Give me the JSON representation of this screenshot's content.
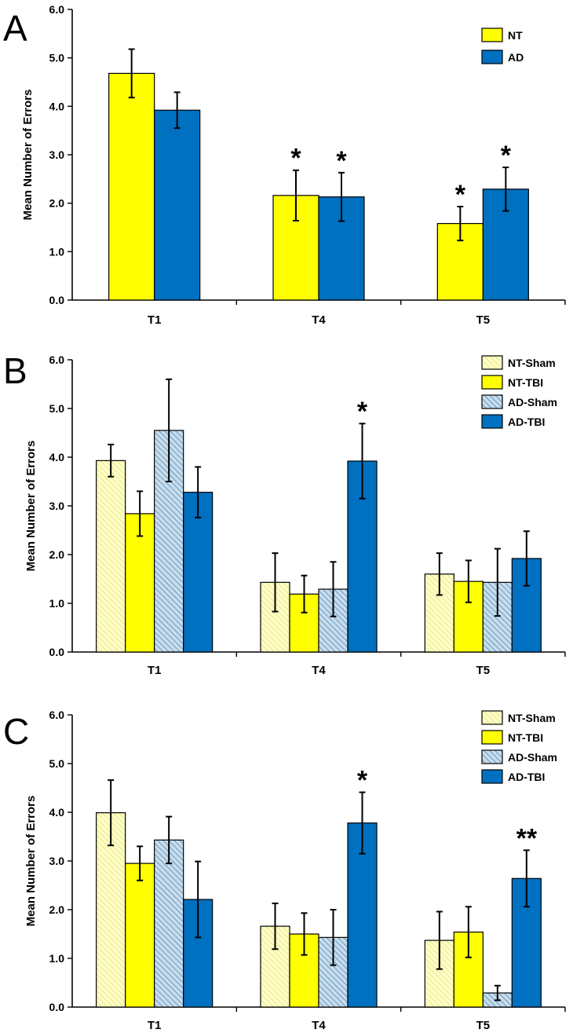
{
  "colors": {
    "nt": "#ffff00",
    "nt_sham": "#ffffc4",
    "ad": "#0070c0",
    "ad_sham": "#b8cfe0",
    "axis": "#000000"
  },
  "chart_data": [
    {
      "type": "bar",
      "panel": "A",
      "ylabel": "Mean Number of Errors",
      "ylim": [
        0,
        6
      ],
      "yticks": [
        "0.0",
        "1.0",
        "2.0",
        "3.0",
        "4.0",
        "5.0",
        "6.0"
      ],
      "categories": [
        "T1",
        "T4",
        "T5"
      ],
      "legend": "top-right",
      "series": [
        {
          "name": "NT",
          "color": "#ffff00",
          "pattern": "solid",
          "values": [
            4.68,
            2.16,
            1.58
          ],
          "errors": [
            0.5,
            0.52,
            0.35
          ],
          "stars": [
            "",
            "*",
            "*"
          ]
        },
        {
          "name": "AD",
          "color": "#0070c0",
          "pattern": "solid",
          "values": [
            3.92,
            2.13,
            2.29
          ],
          "errors": [
            0.37,
            0.5,
            0.45
          ],
          "stars": [
            "",
            "*",
            "*"
          ]
        }
      ]
    },
    {
      "type": "bar",
      "panel": "B",
      "ylabel": "Mean Number of Errors",
      "ylim": [
        0,
        6
      ],
      "yticks": [
        "0.0",
        "1.0",
        "2.0",
        "3.0",
        "4.0",
        "5.0",
        "6.0"
      ],
      "categories": [
        "T1",
        "T4",
        "T5"
      ],
      "legend": "top-right",
      "series": [
        {
          "name": "NT-Sham",
          "color": "#ffffc4",
          "pattern": "hatch",
          "values": [
            3.93,
            1.43,
            1.6
          ],
          "errors": [
            0.33,
            0.6,
            0.43
          ],
          "stars": [
            "",
            "",
            ""
          ]
        },
        {
          "name": "NT-TBI",
          "color": "#ffff00",
          "pattern": "solid",
          "values": [
            2.84,
            1.19,
            1.45
          ],
          "errors": [
            0.46,
            0.38,
            0.43
          ],
          "stars": [
            "",
            "",
            ""
          ]
        },
        {
          "name": "AD-Sham",
          "color": "#b8cfe0",
          "pattern": "hatch",
          "values": [
            4.55,
            1.29,
            1.43
          ],
          "errors": [
            1.05,
            0.56,
            0.69
          ],
          "stars": [
            "",
            "",
            ""
          ]
        },
        {
          "name": "AD-TBI",
          "color": "#0070c0",
          "pattern": "solid",
          "values": [
            3.28,
            3.92,
            1.92
          ],
          "errors": [
            0.52,
            0.77,
            0.56
          ],
          "stars": [
            "",
            "*",
            ""
          ]
        }
      ]
    },
    {
      "type": "bar",
      "panel": "C",
      "ylabel": "Mean Number of Errors",
      "ylim": [
        0,
        6
      ],
      "yticks": [
        "0.0",
        "1.0",
        "2.0",
        "3.0",
        "4.0",
        "5.0",
        "6.0"
      ],
      "categories": [
        "T1",
        "T4",
        "T5"
      ],
      "legend": "top-right",
      "series": [
        {
          "name": "NT-Sham",
          "color": "#ffffc4",
          "pattern": "hatch",
          "values": [
            3.99,
            1.66,
            1.37
          ],
          "errors": [
            0.67,
            0.47,
            0.59
          ],
          "stars": [
            "",
            "",
            ""
          ]
        },
        {
          "name": "NT-TBI",
          "color": "#ffff00",
          "pattern": "solid",
          "values": [
            2.95,
            1.5,
            1.54
          ],
          "errors": [
            0.35,
            0.43,
            0.52
          ],
          "stars": [
            "",
            "",
            ""
          ]
        },
        {
          "name": "AD-Sham",
          "color": "#b8cfe0",
          "pattern": "hatch",
          "values": [
            3.43,
            1.43,
            0.29
          ],
          "errors": [
            0.48,
            0.57,
            0.15
          ],
          "stars": [
            "",
            "",
            ""
          ]
        },
        {
          "name": "AD-TBI",
          "color": "#0070c0",
          "pattern": "solid",
          "values": [
            2.21,
            3.78,
            2.64
          ],
          "errors": [
            0.78,
            0.63,
            0.58
          ],
          "stars": [
            "",
            "*",
            "**"
          ]
        }
      ]
    }
  ]
}
